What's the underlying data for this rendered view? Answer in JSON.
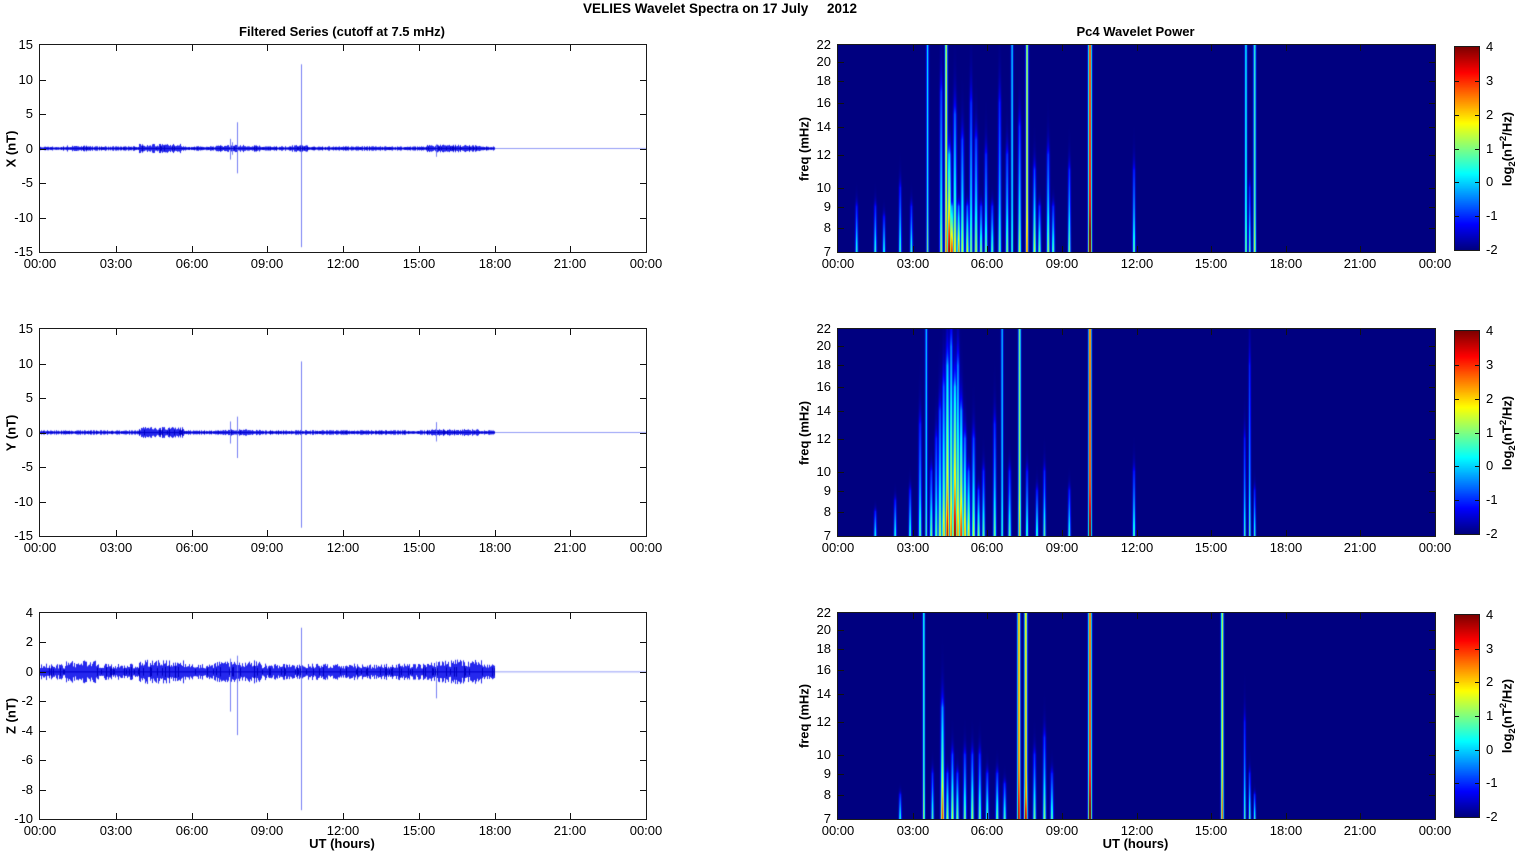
{
  "figure": {
    "title": "VELIES Wavelet Spectra on 17 July     2012",
    "left_column_title": "Filtered Series (cutoff at 7.5 mHz)",
    "right_column_title": "Pc4 Wavelet Power",
    "x_axis_label": "UT (hours)",
    "colorbar_label_parts": {
      "prefix": "log",
      "sub": "2",
      "mid": "(nT",
      "sup": "2",
      "suffix": "/Hz)"
    },
    "line_color": "#0000e0",
    "background_color": "#ffffff",
    "heatmap_low_color": "#00007f",
    "heatmap_high_color": "#7f0000"
  },
  "chart_data": [
    {
      "type": "line",
      "id": "ts-x",
      "ylabel": "X (nT)",
      "ylim": [
        -15,
        15
      ],
      "yticks": [
        15,
        10,
        5,
        0,
        -5,
        -10,
        -15
      ],
      "xlim_hours": [
        0,
        24
      ],
      "xticks": [
        "00:00",
        "03:00",
        "06:00",
        "09:00",
        "12:00",
        "15:00",
        "18:00",
        "21:00",
        "00:00"
      ],
      "data_end_hour": 18,
      "noise_std": 0.12,
      "noise_bursts": [
        [
          1.0,
          2.0,
          1.3
        ],
        [
          3.9,
          5.6,
          2.0
        ],
        [
          6.9,
          8.7,
          1.6
        ],
        [
          9.9,
          10.6,
          1.5
        ],
        [
          15.3,
          17.4,
          1.7
        ]
      ],
      "spikes": [
        [
          7.52,
          1.4,
          -1.6
        ],
        [
          7.62,
          0.9,
          -0.9
        ],
        [
          7.8,
          3.8,
          -3.6
        ],
        [
          10.35,
          12.2,
          -14.3
        ],
        [
          15.7,
          0.5,
          -1.2
        ]
      ]
    },
    {
      "type": "line",
      "id": "ts-y",
      "ylabel": "Y (nT)",
      "ylim": [
        -15,
        15
      ],
      "yticks": [
        15,
        10,
        5,
        0,
        -5,
        -10,
        -15
      ],
      "xlim_hours": [
        0,
        24
      ],
      "xticks": [
        "00:00",
        "03:00",
        "06:00",
        "09:00",
        "12:00",
        "15:00",
        "18:00",
        "21:00",
        "00:00"
      ],
      "data_end_hour": 18,
      "noise_std": 0.12,
      "noise_bursts": [
        [
          3.9,
          5.7,
          2.4
        ],
        [
          6.9,
          8.7,
          1.4
        ],
        [
          15.3,
          17.4,
          1.5
        ]
      ],
      "spikes": [
        [
          7.52,
          1.6,
          -1.6
        ],
        [
          7.8,
          2.3,
          -3.7
        ],
        [
          10.35,
          10.3,
          -13.8
        ],
        [
          15.7,
          1.5,
          -1.3
        ]
      ]
    },
    {
      "type": "line",
      "id": "ts-z",
      "ylabel": "Z (nT)",
      "ylim": [
        -10,
        4
      ],
      "yticks": [
        4,
        2,
        0,
        -2,
        -4,
        -6,
        -8,
        -10
      ],
      "xlim_hours": [
        0,
        24
      ],
      "xticks": [
        "00:00",
        "03:00",
        "06:00",
        "09:00",
        "12:00",
        "15:00",
        "18:00",
        "21:00",
        "00:00"
      ],
      "data_end_hour": 18,
      "noise_std": 0.2,
      "noise_bursts": [
        [
          1.0,
          2.2,
          1.4
        ],
        [
          3.9,
          5.7,
          1.5
        ],
        [
          6.9,
          8.7,
          1.4
        ],
        [
          15.3,
          17.6,
          1.5
        ]
      ],
      "spikes": [
        [
          7.52,
          0.9,
          -2.7
        ],
        [
          7.8,
          1.1,
          -4.3
        ],
        [
          10.35,
          3.0,
          -9.4
        ],
        [
          15.7,
          0.7,
          -1.8
        ]
      ]
    },
    {
      "type": "heatmap",
      "id": "sp-x",
      "ylabel": "freq (mHz)",
      "ylog": true,
      "ylim": [
        7,
        22
      ],
      "yticks": [
        22,
        20,
        18,
        16,
        14,
        12,
        10,
        9,
        8,
        7
      ],
      "xlim_hours": [
        0,
        24
      ],
      "xticks": [
        "00:00",
        "03:00",
        "06:00",
        "09:00",
        "12:00",
        "15:00",
        "18:00",
        "21:00",
        "00:00"
      ],
      "clim": [
        -2,
        4
      ],
      "colorbar_ticks": [
        4,
        3,
        2,
        1,
        0,
        -1,
        -2
      ],
      "events": [
        [
          0.75,
          9,
          0.15,
          0.035
        ],
        [
          1.5,
          9,
          0.2,
          0.035
        ],
        [
          1.85,
          8.5,
          0.12,
          0.035
        ],
        [
          2.5,
          10,
          0.3,
          0.035
        ],
        [
          2.95,
          9,
          0.2,
          0.035
        ],
        [
          3.6,
          22,
          0.5,
          0.03
        ],
        [
          4.15,
          17,
          0.9,
          0.04
        ],
        [
          4.35,
          22,
          2.0,
          0.035
        ],
        [
          4.47,
          12,
          3.2,
          0.05
        ],
        [
          4.58,
          9,
          2.6,
          0.04
        ],
        [
          4.7,
          15,
          1.4,
          0.045
        ],
        [
          4.85,
          9,
          1.8,
          0.04
        ],
        [
          5.0,
          13,
          1.0,
          0.045
        ],
        [
          5.2,
          9,
          1.2,
          0.04
        ],
        [
          5.35,
          16,
          0.7,
          0.04
        ],
        [
          5.55,
          13,
          0.9,
          0.045
        ],
        [
          5.75,
          9,
          0.7,
          0.04
        ],
        [
          5.95,
          12,
          0.6,
          0.04
        ],
        [
          6.2,
          9,
          0.45,
          0.04
        ],
        [
          6.5,
          16,
          0.45,
          0.04
        ],
        [
          6.8,
          12,
          0.7,
          0.04
        ],
        [
          7.0,
          22,
          0.35,
          0.03
        ],
        [
          7.3,
          14,
          0.9,
          0.04
        ],
        [
          7.6,
          22,
          2.0,
          0.035
        ],
        [
          7.9,
          11,
          1.0,
          0.04
        ],
        [
          8.1,
          9,
          0.6,
          0.04
        ],
        [
          8.45,
          12,
          0.8,
          0.04
        ],
        [
          8.65,
          9,
          0.45,
          0.04
        ],
        [
          9.3,
          11,
          0.7,
          0.035
        ],
        [
          10.13,
          22,
          3.9,
          0.045
        ],
        [
          11.9,
          11,
          0.55,
          0.035
        ],
        [
          16.4,
          22,
          0.7,
          0.03
        ],
        [
          16.55,
          10,
          0.5,
          0.03
        ],
        [
          16.75,
          22,
          0.95,
          0.035
        ]
      ]
    },
    {
      "type": "heatmap",
      "id": "sp-y",
      "ylabel": "freq (mHz)",
      "ylog": true,
      "ylim": [
        7,
        22
      ],
      "yticks": [
        22,
        20,
        18,
        16,
        14,
        12,
        10,
        9,
        8,
        7
      ],
      "xlim_hours": [
        0,
        24
      ],
      "xticks": [
        "00:00",
        "03:00",
        "06:00",
        "09:00",
        "12:00",
        "15:00",
        "18:00",
        "21:00",
        "00:00"
      ],
      "clim": [
        -2,
        4
      ],
      "colorbar_ticks": [
        4,
        3,
        2,
        1,
        0,
        -1,
        -2
      ],
      "events": [
        [
          1.5,
          8,
          0.05,
          0.035
        ],
        [
          2.3,
          8.5,
          0.15,
          0.035
        ],
        [
          2.9,
          9,
          0.3,
          0.035
        ],
        [
          3.3,
          13,
          0.45,
          0.04
        ],
        [
          3.55,
          22,
          0.3,
          0.03
        ],
        [
          3.75,
          10,
          0.6,
          0.04
        ],
        [
          3.95,
          12,
          0.55,
          0.04
        ],
        [
          4.1,
          14,
          1.0,
          0.045
        ],
        [
          4.25,
          16,
          1.5,
          0.045
        ],
        [
          4.4,
          18,
          2.8,
          0.05
        ],
        [
          4.55,
          20,
          2.0,
          0.045
        ],
        [
          4.7,
          16,
          3.3,
          0.05
        ],
        [
          4.82,
          18,
          1.9,
          0.045
        ],
        [
          4.95,
          14,
          2.4,
          0.05
        ],
        [
          5.1,
          12,
          1.7,
          0.045
        ],
        [
          5.25,
          10,
          1.4,
          0.045
        ],
        [
          5.45,
          12,
          1.0,
          0.045
        ],
        [
          5.65,
          9,
          0.7,
          0.04
        ],
        [
          5.85,
          10,
          0.5,
          0.04
        ],
        [
          6.3,
          13,
          0.6,
          0.04
        ],
        [
          6.6,
          22,
          0.25,
          0.03
        ],
        [
          6.9,
          10,
          0.45,
          0.04
        ],
        [
          7.3,
          22,
          1.5,
          0.035
        ],
        [
          7.6,
          10,
          0.4,
          0.035
        ],
        [
          8.0,
          9,
          0.35,
          0.035
        ],
        [
          8.3,
          10,
          0.45,
          0.035
        ],
        [
          9.3,
          9,
          0.25,
          0.035
        ],
        [
          10.13,
          22,
          3.6,
          0.04
        ],
        [
          11.9,
          10,
          0.45,
          0.035
        ],
        [
          16.35,
          12,
          0.3,
          0.03
        ],
        [
          16.55,
          18,
          0.4,
          0.03
        ],
        [
          16.75,
          9,
          0.25,
          0.03
        ]
      ]
    },
    {
      "type": "heatmap",
      "id": "sp-z",
      "ylabel": "freq (mHz)",
      "ylog": true,
      "ylim": [
        7,
        22
      ],
      "yticks": [
        22,
        20,
        18,
        16,
        14,
        12,
        10,
        9,
        8,
        7
      ],
      "xlim_hours": [
        0,
        24
      ],
      "xticks": [
        "00:00",
        "03:00",
        "06:00",
        "09:00",
        "12:00",
        "15:00",
        "18:00",
        "21:00",
        "00:00"
      ],
      "clim": [
        -2,
        4
      ],
      "colorbar_ticks": [
        4,
        3,
        2,
        1,
        0,
        -1,
        -2
      ],
      "events": [
        [
          2.5,
          8,
          0.15,
          0.035
        ],
        [
          3.45,
          22,
          0.85,
          0.03
        ],
        [
          3.8,
          9,
          0.35,
          0.035
        ],
        [
          4.2,
          13,
          2.2,
          0.045
        ],
        [
          4.4,
          9,
          0.8,
          0.04
        ],
        [
          4.6,
          10,
          1.0,
          0.04
        ],
        [
          4.8,
          9,
          0.65,
          0.04
        ],
        [
          5.1,
          10,
          0.65,
          0.04
        ],
        [
          5.4,
          10,
          0.85,
          0.04
        ],
        [
          5.7,
          10,
          0.6,
          0.04
        ],
        [
          6.0,
          9,
          0.45,
          0.04
        ],
        [
          6.4,
          9,
          0.55,
          0.04
        ],
        [
          6.7,
          8.5,
          0.35,
          0.04
        ],
        [
          7.27,
          22,
          3.0,
          0.04
        ],
        [
          7.55,
          22,
          2.5,
          0.04
        ],
        [
          7.55,
          11,
          3.0,
          0.045
        ],
        [
          7.9,
          10,
          0.55,
          0.04
        ],
        [
          8.3,
          11,
          0.7,
          0.04
        ],
        [
          8.6,
          9,
          0.45,
          0.04
        ],
        [
          10.13,
          22,
          3.6,
          0.045
        ],
        [
          15.45,
          22,
          2.0,
          0.035
        ],
        [
          16.35,
          12,
          0.35,
          0.03
        ],
        [
          16.55,
          9,
          0.45,
          0.03
        ],
        [
          16.75,
          8,
          0.25,
          0.03
        ]
      ]
    }
  ]
}
